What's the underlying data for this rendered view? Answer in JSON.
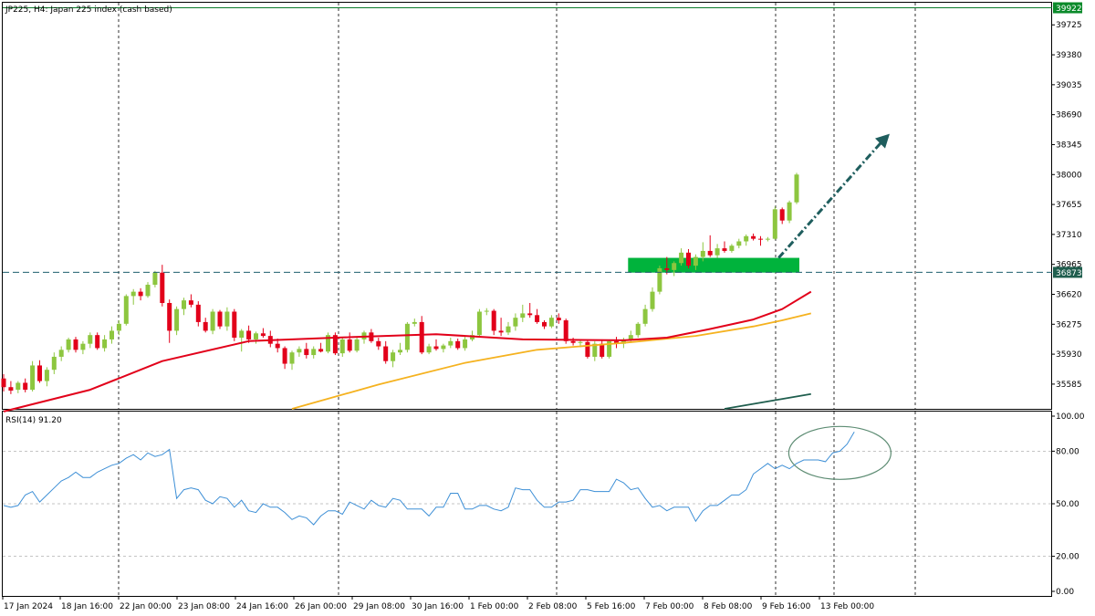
{
  "window": {
    "title": "JP225, H4:  Japan 225 index (cash based)"
  },
  "rsi_panel": {
    "label": "RSI(14) 91.20"
  },
  "colors": {
    "bull": "#8dc63f",
    "bear": "#e2001a",
    "ma_fast": "#e2001a",
    "ma_slow": "#f5b21f",
    "ma_long": "#1f5e4e",
    "rsi": "#3d8fd6",
    "support": "#1f5e6e",
    "zone": "#00b33c",
    "arrow": "#1f5e5e",
    "ellipse": "#5d8c73",
    "current_price": "#0a7a2a",
    "support_label_bg": "#1f5e4e",
    "last_price_bg": "#0a8a2a"
  },
  "chart_data": [
    {
      "type": "candlestick",
      "title": "JP225, H4:  Japan 225 index (cash based)",
      "ylim": [
        35300,
        39980
      ],
      "y_ticks": [
        "39725",
        "39380",
        "39035",
        "38690",
        "38345",
        "38000",
        "37655",
        "37310",
        "36965",
        "36620",
        "36275",
        "35930",
        "35585"
      ],
      "x_ticks": [
        "17 Jan 2024",
        "18 Jan 16:00",
        "22 Jan 00:00",
        "23 Jan 08:00",
        "24 Jan 16:00",
        "26 Jan 00:00",
        "29 Jan 08:00",
        "30 Jan 16:00",
        "1 Feb 00:00",
        "2 Feb 08:00",
        "5 Feb 16:00",
        "7 Feb 00:00",
        "8 Feb 08:00",
        "9 Feb 16:00",
        "13 Feb 00:00"
      ],
      "current_price": {
        "value": 39922,
        "label": "39922"
      },
      "support_level": {
        "value": 36873,
        "label": "36873"
      },
      "support_zone": [
        36870,
        37040
      ],
      "trend_arrow": {
        "from": "9 Feb 16:00",
        "direction": "up",
        "style": "dash-dot"
      },
      "candles": [
        {
          "o": 35650,
          "h": 35700,
          "l": 35500,
          "c": 35550
        },
        {
          "o": 35550,
          "h": 35620,
          "l": 35470,
          "c": 35510
        },
        {
          "o": 35520,
          "h": 35620,
          "l": 35480,
          "c": 35600
        },
        {
          "o": 35600,
          "h": 35650,
          "l": 35490,
          "c": 35520
        },
        {
          "o": 35520,
          "h": 35850,
          "l": 35500,
          "c": 35800
        },
        {
          "o": 35800,
          "h": 35860,
          "l": 35600,
          "c": 35620
        },
        {
          "o": 35620,
          "h": 35780,
          "l": 35560,
          "c": 35750
        },
        {
          "o": 35750,
          "h": 35950,
          "l": 35700,
          "c": 35900
        },
        {
          "o": 35900,
          "h": 36020,
          "l": 35850,
          "c": 35980
        },
        {
          "o": 35980,
          "h": 36120,
          "l": 35950,
          "c": 36100
        },
        {
          "o": 36100,
          "h": 36130,
          "l": 35950,
          "c": 35980
        },
        {
          "o": 35980,
          "h": 36080,
          "l": 35930,
          "c": 36050
        },
        {
          "o": 36050,
          "h": 36180,
          "l": 36000,
          "c": 36150
        },
        {
          "o": 36150,
          "h": 36180,
          "l": 35980,
          "c": 36000
        },
        {
          "o": 36000,
          "h": 36150,
          "l": 35960,
          "c": 36100
        },
        {
          "o": 36100,
          "h": 36250,
          "l": 36050,
          "c": 36200
        },
        {
          "o": 36200,
          "h": 36320,
          "l": 36150,
          "c": 36280
        },
        {
          "o": 36280,
          "h": 36620,
          "l": 36260,
          "c": 36600
        },
        {
          "o": 36600,
          "h": 36680,
          "l": 36500,
          "c": 36650
        },
        {
          "o": 36650,
          "h": 36690,
          "l": 36550,
          "c": 36600
        },
        {
          "o": 36600,
          "h": 36760,
          "l": 36580,
          "c": 36730
        },
        {
          "o": 36730,
          "h": 36890,
          "l": 36700,
          "c": 36870
        },
        {
          "o": 36870,
          "h": 36960,
          "l": 36480,
          "c": 36520
        },
        {
          "o": 36520,
          "h": 36560,
          "l": 36060,
          "c": 36200
        },
        {
          "o": 36200,
          "h": 36480,
          "l": 36150,
          "c": 36450
        },
        {
          "o": 36450,
          "h": 36580,
          "l": 36380,
          "c": 36550
        },
        {
          "o": 36550,
          "h": 36620,
          "l": 36470,
          "c": 36500
        },
        {
          "o": 36500,
          "h": 36540,
          "l": 36250,
          "c": 36300
        },
        {
          "o": 36300,
          "h": 36350,
          "l": 36180,
          "c": 36200
        },
        {
          "o": 36200,
          "h": 36450,
          "l": 36160,
          "c": 36420
        },
        {
          "o": 36420,
          "h": 36440,
          "l": 36220,
          "c": 36250
        },
        {
          "o": 36250,
          "h": 36470,
          "l": 36200,
          "c": 36420
        },
        {
          "o": 36420,
          "h": 36450,
          "l": 36080,
          "c": 36120
        },
        {
          "o": 36120,
          "h": 36220,
          "l": 35960,
          "c": 36200
        },
        {
          "o": 36200,
          "h": 36260,
          "l": 36060,
          "c": 36100
        },
        {
          "o": 36100,
          "h": 36190,
          "l": 36050,
          "c": 36170
        },
        {
          "o": 36170,
          "h": 36230,
          "l": 36120,
          "c": 36140
        },
        {
          "o": 36140,
          "h": 36200,
          "l": 36010,
          "c": 36050
        },
        {
          "o": 36050,
          "h": 36110,
          "l": 35950,
          "c": 36000
        },
        {
          "o": 36000,
          "h": 36020,
          "l": 35760,
          "c": 35820
        },
        {
          "o": 35820,
          "h": 35970,
          "l": 35750,
          "c": 35950
        },
        {
          "o": 35950,
          "h": 36020,
          "l": 35900,
          "c": 35990
        },
        {
          "o": 35990,
          "h": 36060,
          "l": 35880,
          "c": 35920
        },
        {
          "o": 35920,
          "h": 36020,
          "l": 35880,
          "c": 35990
        },
        {
          "o": 35990,
          "h": 36060,
          "l": 35950,
          "c": 35960
        },
        {
          "o": 35960,
          "h": 36180,
          "l": 35940,
          "c": 36150
        },
        {
          "o": 36150,
          "h": 36180,
          "l": 35920,
          "c": 35940
        },
        {
          "o": 35940,
          "h": 36120,
          "l": 35900,
          "c": 36100
        },
        {
          "o": 36100,
          "h": 36180,
          "l": 35950,
          "c": 35970
        },
        {
          "o": 35970,
          "h": 36120,
          "l": 35950,
          "c": 36100
        },
        {
          "o": 36100,
          "h": 36200,
          "l": 36050,
          "c": 36180
        },
        {
          "o": 36180,
          "h": 36220,
          "l": 36060,
          "c": 36080
        },
        {
          "o": 36080,
          "h": 36120,
          "l": 35980,
          "c": 36020
        },
        {
          "o": 36020,
          "h": 36080,
          "l": 35820,
          "c": 35850
        },
        {
          "o": 35850,
          "h": 35980,
          "l": 35780,
          "c": 35950
        },
        {
          "o": 35950,
          "h": 36060,
          "l": 35920,
          "c": 35980
        },
        {
          "o": 35980,
          "h": 36300,
          "l": 35950,
          "c": 36280
        },
        {
          "o": 36280,
          "h": 36340,
          "l": 36250,
          "c": 36300
        },
        {
          "o": 36300,
          "h": 36370,
          "l": 35930,
          "c": 35950
        },
        {
          "o": 35950,
          "h": 36050,
          "l": 35930,
          "c": 36020
        },
        {
          "o": 36020,
          "h": 36100,
          "l": 35970,
          "c": 35990
        },
        {
          "o": 35990,
          "h": 36050,
          "l": 35950,
          "c": 36030
        },
        {
          "o": 36030,
          "h": 36120,
          "l": 36000,
          "c": 36080
        },
        {
          "o": 36080,
          "h": 36110,
          "l": 35980,
          "c": 36000
        },
        {
          "o": 36000,
          "h": 36140,
          "l": 35970,
          "c": 36100
        },
        {
          "o": 36100,
          "h": 36200,
          "l": 36080,
          "c": 36150
        },
        {
          "o": 36150,
          "h": 36450,
          "l": 36120,
          "c": 36420
        },
        {
          "o": 36420,
          "h": 36460,
          "l": 36380,
          "c": 36430
        },
        {
          "o": 36430,
          "h": 36450,
          "l": 36150,
          "c": 36200
        },
        {
          "o": 36200,
          "h": 36350,
          "l": 36140,
          "c": 36180
        },
        {
          "o": 36180,
          "h": 36300,
          "l": 36150,
          "c": 36250
        },
        {
          "o": 36250,
          "h": 36400,
          "l": 36200,
          "c": 36350
        },
        {
          "o": 36350,
          "h": 36500,
          "l": 36300,
          "c": 36400
        },
        {
          "o": 36400,
          "h": 36520,
          "l": 36350,
          "c": 36380
        },
        {
          "o": 36380,
          "h": 36450,
          "l": 36280,
          "c": 36300
        },
        {
          "o": 36300,
          "h": 36320,
          "l": 36220,
          "c": 36250
        },
        {
          "o": 36250,
          "h": 36380,
          "l": 36230,
          "c": 36350
        },
        {
          "o": 36350,
          "h": 36400,
          "l": 36280,
          "c": 36320
        },
        {
          "o": 36320,
          "h": 36340,
          "l": 36050,
          "c": 36080
        },
        {
          "o": 36080,
          "h": 36120,
          "l": 36030,
          "c": 36060
        },
        {
          "o": 36060,
          "h": 36100,
          "l": 36010,
          "c": 36070
        },
        {
          "o": 36070,
          "h": 36100,
          "l": 35880,
          "c": 35900
        },
        {
          "o": 35900,
          "h": 36080,
          "l": 35850,
          "c": 36050
        },
        {
          "o": 36050,
          "h": 36100,
          "l": 35880,
          "c": 35900
        },
        {
          "o": 35900,
          "h": 36100,
          "l": 35880,
          "c": 36080
        },
        {
          "o": 36080,
          "h": 36130,
          "l": 36000,
          "c": 36050
        },
        {
          "o": 36050,
          "h": 36120,
          "l": 36000,
          "c": 36100
        },
        {
          "o": 36100,
          "h": 36200,
          "l": 36060,
          "c": 36150
        },
        {
          "o": 36150,
          "h": 36300,
          "l": 36120,
          "c": 36280
        },
        {
          "o": 36280,
          "h": 36500,
          "l": 36250,
          "c": 36450
        },
        {
          "o": 36450,
          "h": 36700,
          "l": 36420,
          "c": 36650
        },
        {
          "o": 36650,
          "h": 36950,
          "l": 36620,
          "c": 36920
        },
        {
          "o": 36920,
          "h": 37050,
          "l": 36850,
          "c": 36900
        },
        {
          "o": 36900,
          "h": 37000,
          "l": 36830,
          "c": 36980
        },
        {
          "o": 36980,
          "h": 37150,
          "l": 36950,
          "c": 37100
        },
        {
          "o": 37100,
          "h": 37140,
          "l": 36920,
          "c": 36950
        },
        {
          "o": 36950,
          "h": 37080,
          "l": 36900,
          "c": 37050
        },
        {
          "o": 37050,
          "h": 37220,
          "l": 37000,
          "c": 37120
        },
        {
          "o": 37120,
          "h": 37300,
          "l": 37050,
          "c": 37070
        },
        {
          "o": 37070,
          "h": 37200,
          "l": 37040,
          "c": 37150
        },
        {
          "o": 37150,
          "h": 37230,
          "l": 37100,
          "c": 37120
        },
        {
          "o": 37120,
          "h": 37200,
          "l": 37100,
          "c": 37180
        },
        {
          "o": 37180,
          "h": 37260,
          "l": 37150,
          "c": 37230
        },
        {
          "o": 37230,
          "h": 37310,
          "l": 37180,
          "c": 37290
        },
        {
          "o": 37290,
          "h": 37320,
          "l": 37240,
          "c": 37260
        },
        {
          "o": 37260,
          "h": 37290,
          "l": 37180,
          "c": 37250
        },
        {
          "o": 37250,
          "h": 37280,
          "l": 37230,
          "c": 37260
        },
        {
          "o": 37260,
          "h": 37630,
          "l": 37250,
          "c": 37600
        },
        {
          "o": 37600,
          "h": 37620,
          "l": 37430,
          "c": 37470
        },
        {
          "o": 37470,
          "h": 37700,
          "l": 37440,
          "c": 37680
        },
        {
          "o": 37680,
          "h": 38020,
          "l": 37660,
          "c": 38000
        }
      ],
      "ma_fast": [
        [
          0,
          35270
        ],
        [
          12,
          35520
        ],
        [
          22,
          35850
        ],
        [
          34,
          36080
        ],
        [
          46,
          36120
        ],
        [
          60,
          36160
        ],
        [
          72,
          36100
        ],
        [
          86,
          36090
        ],
        [
          92,
          36120
        ],
        [
          98,
          36220
        ],
        [
          104,
          36330
        ],
        [
          108,
          36450
        ],
        [
          112,
          36650
        ]
      ],
      "ma_slow": [
        [
          40,
          35300
        ],
        [
          52,
          35580
        ],
        [
          64,
          35830
        ],
        [
          74,
          35980
        ],
        [
          86,
          36060
        ],
        [
          96,
          36140
        ],
        [
          104,
          36250
        ],
        [
          108,
          36320
        ],
        [
          112,
          36400
        ]
      ],
      "ma_long": [
        [
          100,
          35300
        ],
        [
          112,
          35470
        ]
      ]
    },
    {
      "type": "line",
      "title": "RSI(14) 91.20",
      "ylim": [
        0,
        100
      ],
      "y_ticks": [
        "100.00",
        "80.00",
        "50.00",
        "20.00",
        "0.00"
      ],
      "reference_lines": [
        80,
        50,
        20
      ],
      "series": [
        {
          "values": [
            49,
            48,
            49,
            55,
            57,
            51,
            55,
            59,
            63,
            65,
            68,
            65,
            65,
            68,
            70,
            72,
            73,
            76,
            78,
            75,
            79,
            77,
            78,
            81,
            53,
            58,
            59,
            58,
            52,
            50,
            54,
            53,
            48,
            52,
            46,
            45,
            50,
            48,
            48,
            45,
            41,
            43,
            42,
            38,
            43,
            46,
            46,
            44,
            51,
            49,
            47,
            52,
            49,
            48,
            53,
            52,
            47,
            47,
            47,
            43,
            48,
            48,
            56,
            56,
            47,
            47,
            49,
            49,
            47,
            46,
            48,
            59,
            58,
            58,
            52,
            48,
            48,
            51,
            51,
            52,
            58,
            58,
            57,
            57,
            57,
            64,
            62,
            58,
            59,
            53,
            48,
            49,
            46,
            48,
            48,
            48,
            40,
            46,
            49,
            49,
            52,
            55,
            55,
            58,
            67,
            70,
            73,
            70,
            72,
            70,
            73,
            75,
            75,
            75,
            74,
            79,
            80,
            84,
            91
          ]
        }
      ],
      "annotation": "ellipse around latest values"
    }
  ]
}
